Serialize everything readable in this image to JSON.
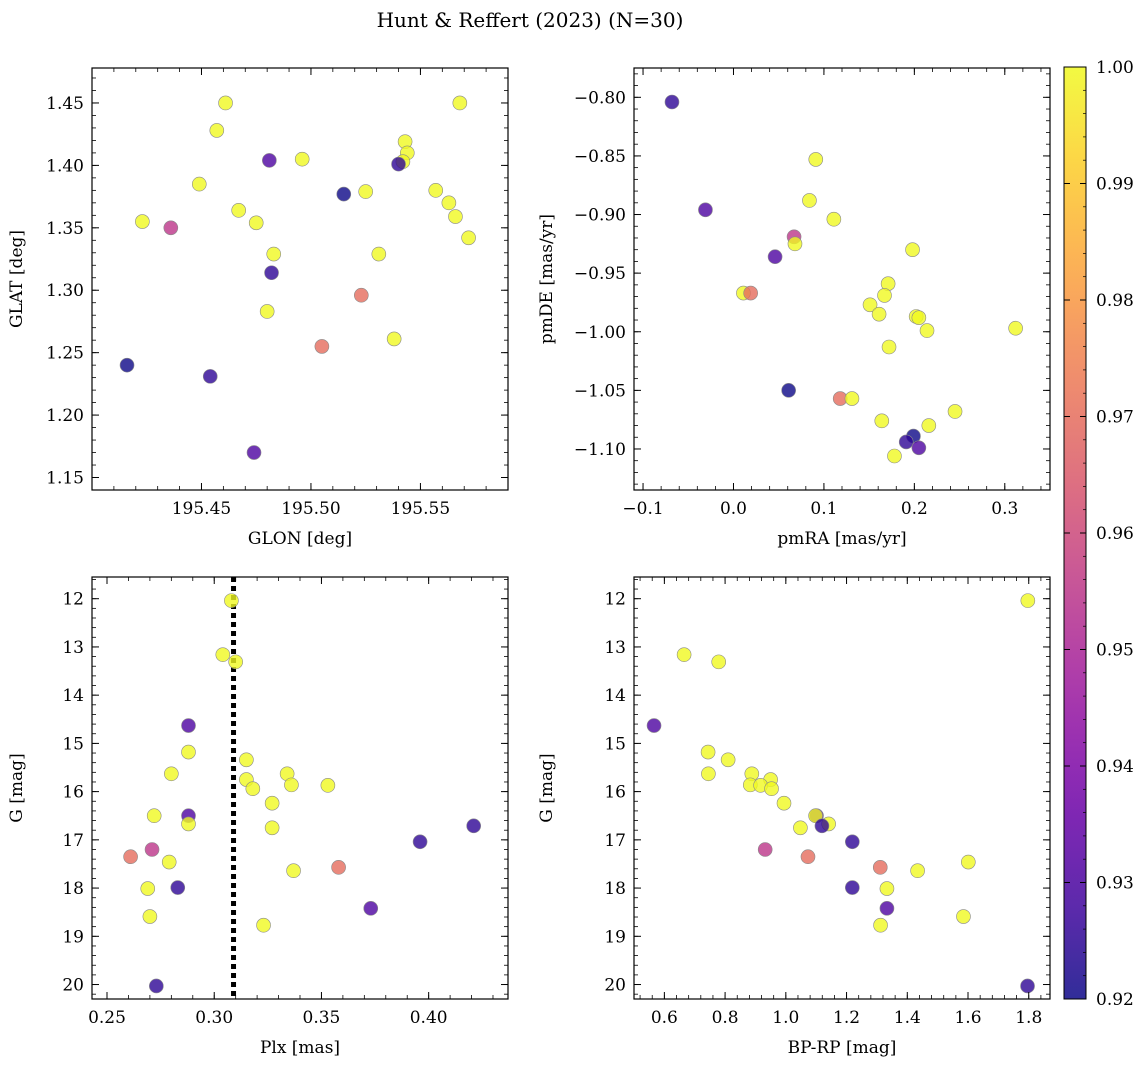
{
  "chart_data": {
    "title": "Hunt & Reffert (2023) (N=30)",
    "colorbar": {
      "range": [
        0.92,
        1.0
      ],
      "ticks": [
        0.92,
        0.93,
        0.94,
        0.95,
        0.96,
        0.97,
        0.98,
        0.99,
        1.0
      ],
      "tick_labels": [
        "0.92",
        "0.93",
        "0.94",
        "0.95",
        "0.96",
        "0.97",
        "0.98",
        "0.99",
        "1.00"
      ],
      "colormap": "plasma"
    },
    "panels": [
      {
        "type": "scatter",
        "xlabel": "GLON [deg]",
        "ylabel": "GLAT [deg]",
        "xlim": [
          195.4,
          195.59
        ],
        "ylim": [
          1.14,
          1.478
        ],
        "xticks": [
          195.45,
          195.5,
          195.55
        ],
        "xtick_labels": [
          "195.45",
          "195.50",
          "195.55"
        ],
        "yticks": [
          1.15,
          1.2,
          1.25,
          1.3,
          1.35,
          1.4,
          1.45
        ],
        "ytick_labels": [
          "1.15",
          "1.20",
          "1.25",
          "1.30",
          "1.35",
          "1.40",
          "1.45"
        ],
        "points": [
          {
            "x": 195.461,
            "y": 1.45,
            "c": 1.0
          },
          {
            "x": 195.568,
            "y": 1.45,
            "c": 1.0
          },
          {
            "x": 195.457,
            "y": 1.428,
            "c": 1.0
          },
          {
            "x": 195.543,
            "y": 1.419,
            "c": 1.0
          },
          {
            "x": 195.544,
            "y": 1.41,
            "c": 1.0
          },
          {
            "x": 195.496,
            "y": 1.405,
            "c": 1.0
          },
          {
            "x": 195.542,
            "y": 1.403,
            "c": 1.0
          },
          {
            "x": 195.481,
            "y": 1.404,
            "c": 0.93
          },
          {
            "x": 195.54,
            "y": 1.401,
            "c": 0.925
          },
          {
            "x": 195.449,
            "y": 1.385,
            "c": 1.0
          },
          {
            "x": 195.557,
            "y": 1.38,
            "c": 1.0
          },
          {
            "x": 195.525,
            "y": 1.379,
            "c": 1.0
          },
          {
            "x": 195.515,
            "y": 1.377,
            "c": 0.92
          },
          {
            "x": 195.563,
            "y": 1.37,
            "c": 1.0
          },
          {
            "x": 195.467,
            "y": 1.364,
            "c": 1.0
          },
          {
            "x": 195.566,
            "y": 1.359,
            "c": 1.0
          },
          {
            "x": 195.423,
            "y": 1.355,
            "c": 1.0
          },
          {
            "x": 195.475,
            "y": 1.354,
            "c": 1.0
          },
          {
            "x": 195.436,
            "y": 1.35,
            "c": 0.955
          },
          {
            "x": 195.572,
            "y": 1.342,
            "c": 1.0
          },
          {
            "x": 195.483,
            "y": 1.329,
            "c": 1.0
          },
          {
            "x": 195.531,
            "y": 1.329,
            "c": 1.0
          },
          {
            "x": 195.482,
            "y": 1.314,
            "c": 0.925
          },
          {
            "x": 195.523,
            "y": 1.296,
            "c": 0.97
          },
          {
            "x": 195.48,
            "y": 1.283,
            "c": 1.0
          },
          {
            "x": 195.538,
            "y": 1.261,
            "c": 1.0
          },
          {
            "x": 195.505,
            "y": 1.255,
            "c": 0.97
          },
          {
            "x": 195.416,
            "y": 1.24,
            "c": 0.92
          },
          {
            "x": 195.454,
            "y": 1.231,
            "c": 0.925
          },
          {
            "x": 195.474,
            "y": 1.17,
            "c": 0.93
          }
        ]
      },
      {
        "type": "scatter",
        "xlabel": "pmRA [mas/yr]",
        "ylabel": "pmDE [mas/yr]",
        "xlim": [
          -0.11,
          0.35
        ],
        "ylim": [
          -1.135,
          -0.775
        ],
        "xticks": [
          -0.1,
          0.0,
          0.1,
          0.2,
          0.3
        ],
        "xtick_labels": [
          "−0.1",
          "0.0",
          "0.1",
          "0.2",
          "0.3"
        ],
        "yticks": [
          -1.1,
          -1.05,
          -1.0,
          -0.95,
          -0.9,
          -0.85,
          -0.8
        ],
        "ytick_labels": [
          "−1.10",
          "−1.05",
          "−1.00",
          "−0.95",
          "−0.90",
          "−0.85",
          "−0.80"
        ],
        "points": [
          {
            "x": -0.068,
            "y": -0.804,
            "c": 0.925
          },
          {
            "x": -0.031,
            "y": -0.896,
            "c": 0.93
          },
          {
            "x": 0.091,
            "y": -0.853,
            "c": 1.0
          },
          {
            "x": 0.084,
            "y": -0.888,
            "c": 1.0
          },
          {
            "x": 0.111,
            "y": -0.904,
            "c": 1.0
          },
          {
            "x": 0.067,
            "y": -0.919,
            "c": 0.955
          },
          {
            "x": 0.068,
            "y": -0.925,
            "c": 1.0
          },
          {
            "x": 0.198,
            "y": -0.93,
            "c": 1.0
          },
          {
            "x": 0.046,
            "y": -0.936,
            "c": 0.93
          },
          {
            "x": 0.171,
            "y": -0.959,
            "c": 1.0
          },
          {
            "x": 0.011,
            "y": -0.967,
            "c": 1.0
          },
          {
            "x": 0.019,
            "y": -0.967,
            "c": 0.97
          },
          {
            "x": 0.167,
            "y": -0.969,
            "c": 1.0
          },
          {
            "x": 0.151,
            "y": -0.977,
            "c": 1.0
          },
          {
            "x": 0.161,
            "y": -0.985,
            "c": 1.0
          },
          {
            "x": 0.202,
            "y": -0.987,
            "c": 1.0
          },
          {
            "x": 0.205,
            "y": -0.988,
            "c": 1.0
          },
          {
            "x": 0.312,
            "y": -0.997,
            "c": 1.0
          },
          {
            "x": 0.214,
            "y": -0.999,
            "c": 1.0
          },
          {
            "x": 0.172,
            "y": -1.013,
            "c": 1.0
          },
          {
            "x": 0.061,
            "y": -1.05,
            "c": 0.92
          },
          {
            "x": 0.118,
            "y": -1.057,
            "c": 0.97
          },
          {
            "x": 0.131,
            "y": -1.057,
            "c": 1.0
          },
          {
            "x": 0.245,
            "y": -1.068,
            "c": 1.0
          },
          {
            "x": 0.164,
            "y": -1.076,
            "c": 1.0
          },
          {
            "x": 0.216,
            "y": -1.08,
            "c": 1.0
          },
          {
            "x": 0.199,
            "y": -1.089,
            "c": 0.92
          },
          {
            "x": 0.191,
            "y": -1.094,
            "c": 0.925
          },
          {
            "x": 0.205,
            "y": -1.099,
            "c": 0.93
          },
          {
            "x": 0.178,
            "y": -1.106,
            "c": 1.0
          }
        ]
      },
      {
        "type": "scatter",
        "xlabel": "Plx [mas]",
        "ylabel": "G [mag]",
        "xlim": [
          0.243,
          0.437
        ],
        "ylim": [
          20.3,
          11.55
        ],
        "inverted_y": true,
        "vline": {
          "x": 0.309,
          "style": "dotted",
          "color": "#000000"
        },
        "xticks": [
          0.25,
          0.3,
          0.35,
          0.4
        ],
        "xtick_labels": [
          "0.25",
          "0.30",
          "0.35",
          "0.40"
        ],
        "yticks": [
          12,
          13,
          14,
          15,
          16,
          17,
          18,
          19,
          20
        ],
        "ytick_labels": [
          "12",
          "13",
          "14",
          "15",
          "16",
          "17",
          "18",
          "19",
          "20"
        ],
        "points": [
          {
            "x": 0.308,
            "y": 12.04,
            "c": 1.0
          },
          {
            "x": 0.304,
            "y": 13.16,
            "c": 1.0
          },
          {
            "x": 0.31,
            "y": 13.31,
            "c": 1.0
          },
          {
            "x": 0.288,
            "y": 14.63,
            "c": 0.93
          },
          {
            "x": 0.288,
            "y": 15.18,
            "c": 1.0
          },
          {
            "x": 0.315,
            "y": 15.34,
            "c": 1.0
          },
          {
            "x": 0.28,
            "y": 15.63,
            "c": 1.0
          },
          {
            "x": 0.334,
            "y": 15.63,
            "c": 1.0
          },
          {
            "x": 0.315,
            "y": 15.75,
            "c": 1.0
          },
          {
            "x": 0.336,
            "y": 15.86,
            "c": 1.0
          },
          {
            "x": 0.353,
            "y": 15.87,
            "c": 1.0
          },
          {
            "x": 0.318,
            "y": 15.94,
            "c": 1.0
          },
          {
            "x": 0.327,
            "y": 16.24,
            "c": 1.0
          },
          {
            "x": 0.272,
            "y": 16.5,
            "c": 1.0
          },
          {
            "x": 0.288,
            "y": 16.5,
            "c": 0.93
          },
          {
            "x": 0.288,
            "y": 16.67,
            "c": 1.0
          },
          {
            "x": 0.421,
            "y": 16.71,
            "c": 0.925
          },
          {
            "x": 0.327,
            "y": 16.75,
            "c": 1.0
          },
          {
            "x": 0.396,
            "y": 17.04,
            "c": 0.925
          },
          {
            "x": 0.271,
            "y": 17.2,
            "c": 0.955
          },
          {
            "x": 0.261,
            "y": 17.35,
            "c": 0.97
          },
          {
            "x": 0.279,
            "y": 17.46,
            "c": 1.0
          },
          {
            "x": 0.358,
            "y": 17.57,
            "c": 0.97
          },
          {
            "x": 0.337,
            "y": 17.64,
            "c": 1.0
          },
          {
            "x": 0.283,
            "y": 17.99,
            "c": 0.925
          },
          {
            "x": 0.269,
            "y": 18.01,
            "c": 1.0
          },
          {
            "x": 0.373,
            "y": 18.42,
            "c": 0.93
          },
          {
            "x": 0.27,
            "y": 18.59,
            "c": 1.0
          },
          {
            "x": 0.323,
            "y": 18.77,
            "c": 1.0
          },
          {
            "x": 0.273,
            "y": 20.03,
            "c": 0.925
          }
        ]
      },
      {
        "type": "scatter",
        "xlabel": "BP-RP [mag]",
        "ylabel": "G [mag]",
        "xlim": [
          0.5,
          1.87
        ],
        "ylim": [
          20.3,
          11.55
        ],
        "inverted_y": true,
        "xticks": [
          0.6,
          0.8,
          1.0,
          1.2,
          1.4,
          1.6,
          1.8
        ],
        "xtick_labels": [
          "0.6",
          "0.8",
          "1.0",
          "1.2",
          "1.4",
          "1.6",
          "1.8"
        ],
        "yticks": [
          12,
          13,
          14,
          15,
          16,
          17,
          18,
          19,
          20
        ],
        "ytick_labels": [
          "12",
          "13",
          "14",
          "15",
          "16",
          "17",
          "18",
          "19",
          "20"
        ],
        "points": [
          {
            "x": 1.797,
            "y": 12.04,
            "c": 1.0
          },
          {
            "x": 0.665,
            "y": 13.16,
            "c": 1.0
          },
          {
            "x": 0.779,
            "y": 13.31,
            "c": 1.0
          },
          {
            "x": 0.566,
            "y": 14.63,
            "c": 0.93
          },
          {
            "x": 0.744,
            "y": 15.18,
            "c": 1.0
          },
          {
            "x": 0.81,
            "y": 15.34,
            "c": 1.0
          },
          {
            "x": 0.745,
            "y": 15.63,
            "c": 1.0
          },
          {
            "x": 0.888,
            "y": 15.63,
            "c": 1.0
          },
          {
            "x": 0.95,
            "y": 15.75,
            "c": 1.0
          },
          {
            "x": 0.883,
            "y": 15.86,
            "c": 1.0
          },
          {
            "x": 0.917,
            "y": 15.87,
            "c": 1.0
          },
          {
            "x": 0.953,
            "y": 15.94,
            "c": 1.0
          },
          {
            "x": 0.994,
            "y": 16.24,
            "c": 1.0
          },
          {
            "x": 1.101,
            "y": 16.5,
            "c": 0.93
          },
          {
            "x": 1.098,
            "y": 16.5,
            "c": 1.0
          },
          {
            "x": 1.141,
            "y": 16.67,
            "c": 1.0
          },
          {
            "x": 1.119,
            "y": 16.71,
            "c": 0.925
          },
          {
            "x": 1.048,
            "y": 16.75,
            "c": 1.0
          },
          {
            "x": 1.219,
            "y": 17.04,
            "c": 0.925
          },
          {
            "x": 0.932,
            "y": 17.2,
            "c": 0.955
          },
          {
            "x": 1.073,
            "y": 17.35,
            "c": 0.97
          },
          {
            "x": 1.601,
            "y": 17.46,
            "c": 1.0
          },
          {
            "x": 1.311,
            "y": 17.57,
            "c": 0.97
          },
          {
            "x": 1.434,
            "y": 17.64,
            "c": 1.0
          },
          {
            "x": 1.219,
            "y": 17.99,
            "c": 0.925
          },
          {
            "x": 1.333,
            "y": 18.01,
            "c": 1.0
          },
          {
            "x": 1.333,
            "y": 18.42,
            "c": 0.93
          },
          {
            "x": 1.585,
            "y": 18.59,
            "c": 1.0
          },
          {
            "x": 1.312,
            "y": 18.77,
            "c": 1.0
          },
          {
            "x": 1.796,
            "y": 20.03,
            "c": 0.925
          }
        ]
      }
    ]
  }
}
